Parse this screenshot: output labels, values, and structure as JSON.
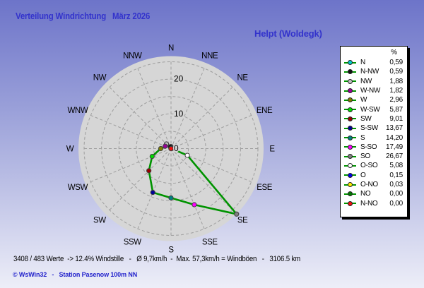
{
  "header": {
    "title": "Verteilung Windrichtung   März 2026",
    "station": "Helpt (Woldegk)"
  },
  "footer": {
    "stats_line": "3408 / 483 Werte  -> 12.4% Windstille   -   Ø 9,7km/h  -  Max. 57,3km/h = Windböen   -   3106.5 km",
    "credit_line": "© WsWin32   -   Station Pasenow 100m NN"
  },
  "legend": {
    "header_percent": "%"
  },
  "colors": {
    "title_blue": "#3333cc",
    "credit_blue": "#2222cc",
    "background_top": "#6d74c9",
    "background_bottom": "#edeef8",
    "chart_disk": "#d6d6d6",
    "grid_gray": "#9e9e9e",
    "series_green": "#009300"
  },
  "chart_data": {
    "type": "radar",
    "subtype": "wind-rose",
    "title": "Verteilung Windrichtung März 2026",
    "units": "%",
    "axis_labels": [
      "N",
      "NNE",
      "NE",
      "ENE",
      "E",
      "ESE",
      "SE",
      "SSE",
      "S",
      "SSW",
      "SW",
      "WSW",
      "W",
      "WNW",
      "NW",
      "NNW"
    ],
    "ring_values": [
      5,
      10,
      15,
      20,
      25
    ],
    "ring_tick_labels": [
      {
        "label": "0",
        "value": 0
      },
      {
        "label": "10",
        "value": 10
      },
      {
        "label": "20",
        "value": 20
      }
    ],
    "axis_max": 25,
    "grid": "dashed",
    "line_color": "#009300",
    "legend_position": "right",
    "series": [
      {
        "label": "N",
        "angle_deg": 0,
        "value": 0.59,
        "display": "0,59",
        "marker_color": "#00cccc"
      },
      {
        "label": "N-NW",
        "angle_deg": 337.5,
        "value": 0.59,
        "display": "0,59",
        "marker_color": "#111111"
      },
      {
        "label": "NW",
        "angle_deg": 315,
        "value": 1.88,
        "display": "1,88",
        "marker_color": "#c0c0c0"
      },
      {
        "label": "W-NW",
        "angle_deg": 292.5,
        "value": 1.82,
        "display": "1,82",
        "marker_color": "#990099"
      },
      {
        "label": "W",
        "angle_deg": 270,
        "value": 2.96,
        "display": "2,96",
        "marker_color": "#808000"
      },
      {
        "label": "W-SW",
        "angle_deg": 247.5,
        "value": 5.87,
        "display": "5,87",
        "marker_color": "#00dd00"
      },
      {
        "label": "SW",
        "angle_deg": 225,
        "value": 9.01,
        "display": "9,01",
        "marker_color": "#990000"
      },
      {
        "label": "S-SW",
        "angle_deg": 202.5,
        "value": 13.67,
        "display": "13,67",
        "marker_color": "#000099"
      },
      {
        "label": "S",
        "angle_deg": 180,
        "value": 14.2,
        "display": "14,20",
        "marker_color": "#008080"
      },
      {
        "label": "S-SO",
        "angle_deg": 157.5,
        "value": 17.49,
        "display": "17,49",
        "marker_color": "#ff00ff"
      },
      {
        "label": "SO",
        "angle_deg": 135,
        "value": 26.67,
        "display": "26,67",
        "marker_color": "#808080"
      },
      {
        "label": "O-SO",
        "angle_deg": 112.5,
        "value": 5.08,
        "display": "5,08",
        "marker_color": "#ffffff"
      },
      {
        "label": "O",
        "angle_deg": 90,
        "value": 0.15,
        "display": "0,15",
        "marker_color": "#0000ee"
      },
      {
        "label": "O-NO",
        "angle_deg": 67.5,
        "value": 0.03,
        "display": "0,03",
        "marker_color": "#ffee00"
      },
      {
        "label": "NO",
        "angle_deg": 45,
        "value": 0.0,
        "display": "0,00",
        "marker_color": "#007700"
      },
      {
        "label": "N-NO",
        "angle_deg": 22.5,
        "value": 0.0,
        "display": "0,00",
        "marker_color": "#ee1111"
      }
    ]
  }
}
